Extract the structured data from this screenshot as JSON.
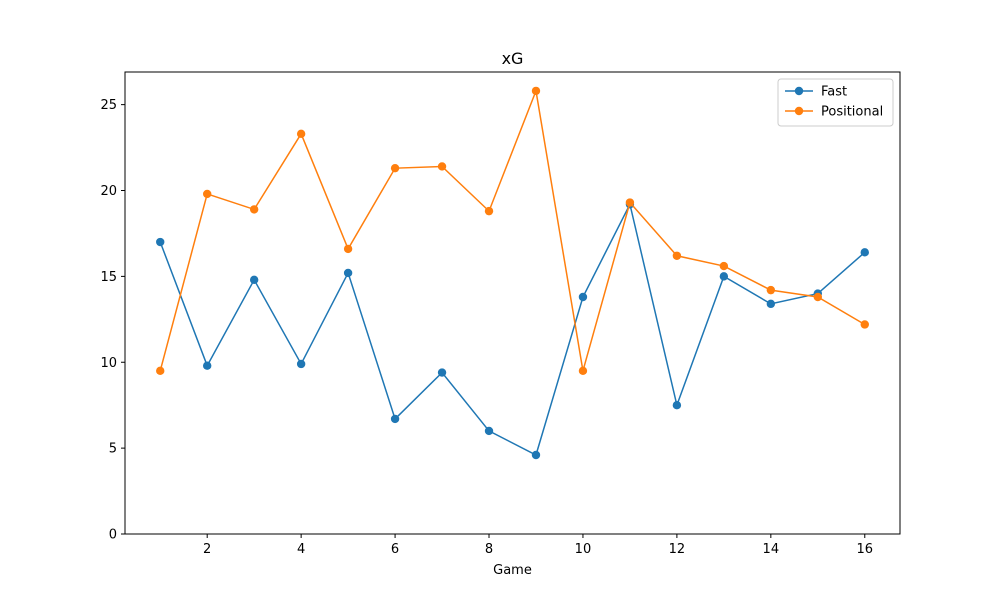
{
  "chart_data": {
    "type": "line",
    "title": "xG",
    "xlabel": "Game",
    "ylabel": "",
    "x": [
      1,
      2,
      3,
      4,
      5,
      6,
      7,
      8,
      9,
      10,
      11,
      12,
      13,
      14,
      15,
      16
    ],
    "xlim": [
      0.25,
      16.75
    ],
    "ylim": [
      0,
      26.9
    ],
    "xticks": [
      2,
      4,
      6,
      8,
      10,
      12,
      14,
      16
    ],
    "yticks": [
      0,
      5,
      10,
      15,
      20,
      25
    ],
    "grid": false,
    "legend_position": "top-right",
    "series": [
      {
        "name": "Fast",
        "color": "#1f77b4",
        "marker": "circle",
        "values": [
          17.0,
          9.8,
          14.8,
          9.9,
          15.2,
          6.7,
          9.4,
          6.0,
          4.6,
          13.8,
          19.2,
          7.5,
          15.0,
          13.4,
          14.0,
          16.4
        ]
      },
      {
        "name": "Positional",
        "color": "#ff7f0e",
        "marker": "circle",
        "values": [
          9.5,
          19.8,
          18.9,
          23.3,
          16.6,
          21.3,
          21.4,
          18.8,
          25.8,
          9.5,
          19.3,
          16.2,
          15.6,
          14.2,
          13.8,
          12.2
        ]
      }
    ]
  }
}
